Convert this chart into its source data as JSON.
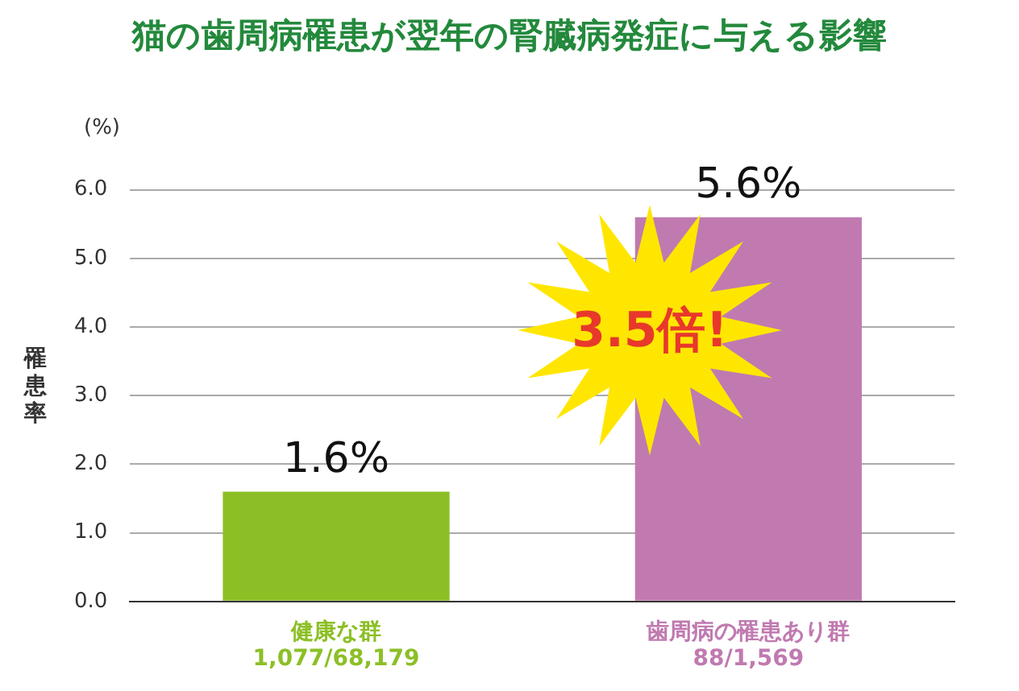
{
  "chart_data": {
    "type": "bar",
    "title": "猫の歯周病罹患が翌年の腎臓病発症に与える影響",
    "ylabel": "罹患率",
    "categories": [
      "健康な群\n1,077/68,179",
      "歯周病の罹患あり群\n88/1,569"
    ],
    "values": [
      1.6,
      5.6
    ],
    "colors": [
      "#8cbf26",
      "#c07ab0"
    ],
    "value_labels": [
      "1.6%",
      "5.6%"
    ],
    "ylim": [
      0,
      6.0
    ],
    "yticks": [
      {
        "value": 0,
        "label": "0.0"
      },
      {
        "value": 1,
        "label": "1.0"
      },
      {
        "value": 2,
        "label": "2.0"
      },
      {
        "value": 3,
        "label": "3.0"
      },
      {
        "value": 4,
        "label": "4.0"
      },
      {
        "value": 5,
        "label": "5.0"
      },
      {
        "value": 6,
        "label": "6.0"
      }
    ],
    "grid": "y",
    "legend": false,
    "annotations": [
      "(%)",
      "3.5倍!"
    ]
  }
}
